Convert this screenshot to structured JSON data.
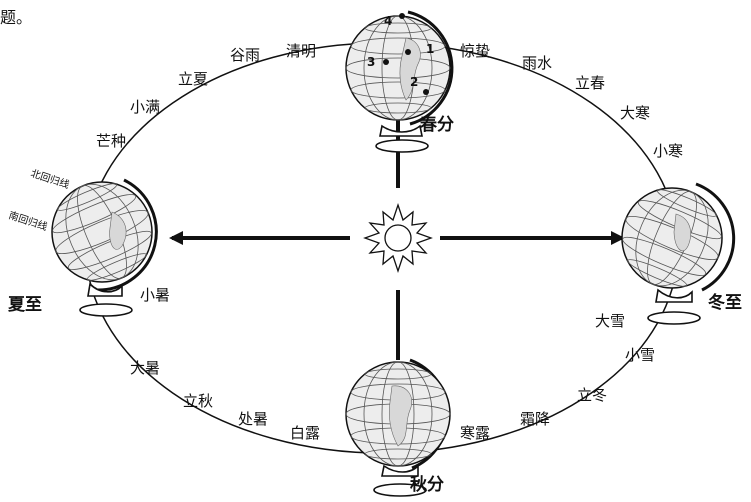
{
  "fragment_text": "题。",
  "orbit_terms": [
    {
      "id": "guyu",
      "label": "谷雨"
    },
    {
      "id": "qingming",
      "label": "清明"
    },
    {
      "id": "lixia",
      "label": "立夏"
    },
    {
      "id": "xiaoman",
      "label": "小满"
    },
    {
      "id": "mangzhong",
      "label": "芒种"
    },
    {
      "id": "jingzhe",
      "label": "惊蛰"
    },
    {
      "id": "yushui",
      "label": "雨水"
    },
    {
      "id": "lichun",
      "label": "立春"
    },
    {
      "id": "dahan",
      "label": "大寒"
    },
    {
      "id": "xiaohan",
      "label": "小寒"
    },
    {
      "id": "xiaoshu",
      "label": "小暑"
    },
    {
      "id": "dashu",
      "label": "大暑"
    },
    {
      "id": "liqiu",
      "label": "立秋"
    },
    {
      "id": "chushu",
      "label": "处暑"
    },
    {
      "id": "bailu",
      "label": "白露"
    },
    {
      "id": "hanlu",
      "label": "寒露"
    },
    {
      "id": "shuangjiang",
      "label": "霜降"
    },
    {
      "id": "lidong",
      "label": "立冬"
    },
    {
      "id": "xiaoxue",
      "label": "小雪"
    },
    {
      "id": "daxue",
      "label": "大雪"
    }
  ],
  "seasons": {
    "spring_equinox": "春分",
    "summer_solstice": "夏至",
    "autumn_equinox": "秋分",
    "winter_solstice": "冬至"
  },
  "tropics": {
    "north": "北回归线",
    "south": "南回归线"
  },
  "points": [
    "1",
    "2",
    "3",
    "4"
  ]
}
